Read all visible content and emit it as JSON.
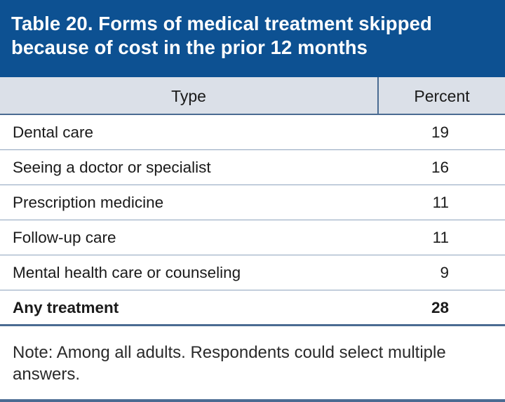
{
  "table": {
    "title": "Table 20. Forms of medical treatment skipped because of cost in the prior 12 months",
    "headers": {
      "type": "Type",
      "percent": "Percent"
    },
    "rows": [
      {
        "type": "Dental care",
        "percent": "19"
      },
      {
        "type": "Seeing a doctor or specialist",
        "percent": "16"
      },
      {
        "type": "Prescription medicine",
        "percent": "11"
      },
      {
        "type": "Follow-up care",
        "percent": "11"
      },
      {
        "type": "Mental health care or counseling",
        "percent": "9"
      }
    ],
    "total": {
      "type": "Any treatment",
      "percent": "28"
    },
    "note": "Note: Among all adults. Respondents could select multiple answers."
  },
  "colors": {
    "title_background": "#0d5192",
    "header_background": "#dbe0e8",
    "rule": "#4a6b92"
  }
}
